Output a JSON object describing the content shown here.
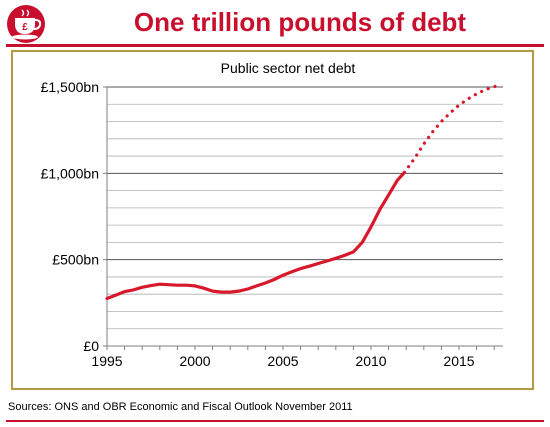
{
  "header": {
    "title": "One trillion pounds of debt",
    "logo_icon": "teacup-pound-icon",
    "accent_color": "#c8102e",
    "frame_color": "#b59a45"
  },
  "footer": {
    "source": "Sources: ONS and OBR Economic and Fiscal Outlook November 2011"
  },
  "chart_data": {
    "type": "line",
    "title": "Public sector net debt",
    "xlabel": "",
    "ylabel": "",
    "xlim": [
      1995,
      2017.5
    ],
    "ylim": [
      0,
      1500
    ],
    "x_ticks": [
      1995,
      2000,
      2005,
      2010,
      2015
    ],
    "x_tick_labels": [
      "1995",
      "2000",
      "2005",
      "2010",
      "2015"
    ],
    "y_ticks": [
      0,
      500,
      1000,
      1500
    ],
    "y_tick_labels": [
      "£0",
      "£500bn",
      "£1,000bn",
      "£1,500bn"
    ],
    "grid": true,
    "legend": "none",
    "series": [
      {
        "style": "solid",
        "color": "#d7192b",
        "x": [
          1995,
          1995.5,
          1996,
          1996.5,
          1997,
          1997.5,
          1998,
          1998.5,
          1999,
          1999.5,
          2000,
          2000.5,
          2001,
          2001.5,
          2002,
          2002.5,
          2003,
          2003.5,
          2004,
          2004.5,
          2005,
          2005.5,
          2006,
          2006.5,
          2007,
          2007.5,
          2008,
          2008.5,
          2009,
          2009.5,
          2010,
          2010.5,
          2011,
          2011.5,
          2011.9
        ],
        "values": [
          275,
          295,
          315,
          325,
          340,
          350,
          358,
          355,
          352,
          352,
          348,
          335,
          318,
          312,
          312,
          318,
          330,
          348,
          365,
          385,
          410,
          430,
          448,
          462,
          478,
          492,
          508,
          525,
          545,
          600,
          690,
          790,
          875,
          960,
          1005
        ]
      },
      {
        "style": "dotted",
        "color": "#d7192b",
        "x": [
          2011.9,
          2012.5,
          2013,
          2013.5,
          2014,
          2014.5,
          2015,
          2015.5,
          2016,
          2016.5,
          2017.1
        ],
        "values": [
          1005,
          1090,
          1170,
          1240,
          1300,
          1350,
          1395,
          1430,
          1460,
          1485,
          1505
        ]
      }
    ]
  }
}
